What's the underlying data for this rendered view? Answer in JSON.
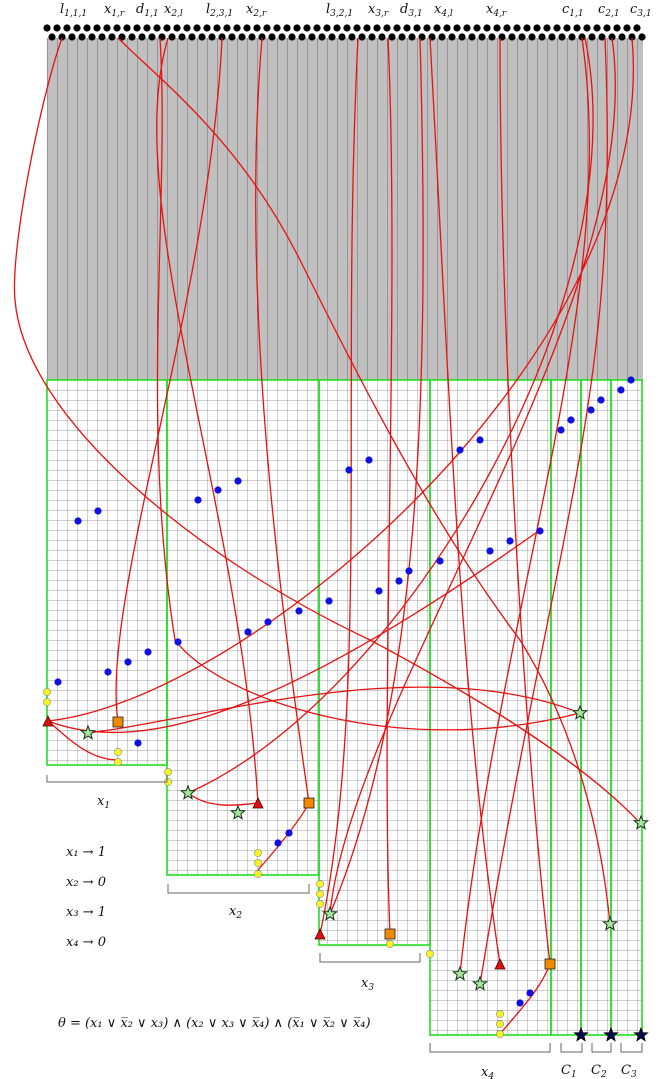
{
  "diagram": {
    "top_labels": [
      {
        "base": "l",
        "sub": "1,1,1"
      },
      {
        "base": "x",
        "sub": "1,r"
      },
      {
        "base": "d",
        "sub": "1,1"
      },
      {
        "base": "x",
        "sub": "2,l"
      },
      {
        "base": "l",
        "sub": "2,3,1"
      },
      {
        "base": "x",
        "sub": "2,r"
      },
      {
        "base": "l",
        "sub": "3,2,1"
      },
      {
        "base": "x",
        "sub": "3,r"
      },
      {
        "base": "d",
        "sub": "3,1"
      },
      {
        "base": "x",
        "sub": "4,l"
      },
      {
        "base": "x",
        "sub": "4,r"
      },
      {
        "base": "c",
        "sub": "1,1"
      },
      {
        "base": "c",
        "sub": "2,1"
      },
      {
        "base": "c",
        "sub": "3,1"
      }
    ],
    "gadget_labels": [
      {
        "base": "x",
        "sub": "1"
      },
      {
        "base": "x",
        "sub": "2"
      },
      {
        "base": "x",
        "sub": "3"
      },
      {
        "base": "x",
        "sub": "4"
      },
      {
        "base": "C",
        "sub": "1"
      },
      {
        "base": "C",
        "sub": "2"
      },
      {
        "base": "C",
        "sub": "3"
      }
    ],
    "assignments": [
      "x₁ → 1",
      "x₂ → 0",
      "x₃ → 1",
      "x₄ → 0"
    ],
    "formula": "θ = (x₁ ∨ x̅₂ ∨ x₃) ∧ (x₂ ∨ x₃ ∨ x̅₄) ∧ (x̅₁ ∨ x̅₂ ∨ x̅₄)",
    "colors": {
      "grid_gray": "#c0c0c0",
      "grid_line": "#333333",
      "gadget_border": "#22dd22",
      "curve": "#e81010",
      "blue_dot": "#1010e0",
      "yellow_dot": "#f5f520",
      "red_triangle": "#e01010",
      "orange_square": "#f08a00",
      "green_star": "#a8e6a0",
      "navy_star": "#0a0a50"
    },
    "icons": [
      "red-triangle-icon",
      "orange-square-icon",
      "green-star-icon",
      "navy-star-icon"
    ]
  }
}
